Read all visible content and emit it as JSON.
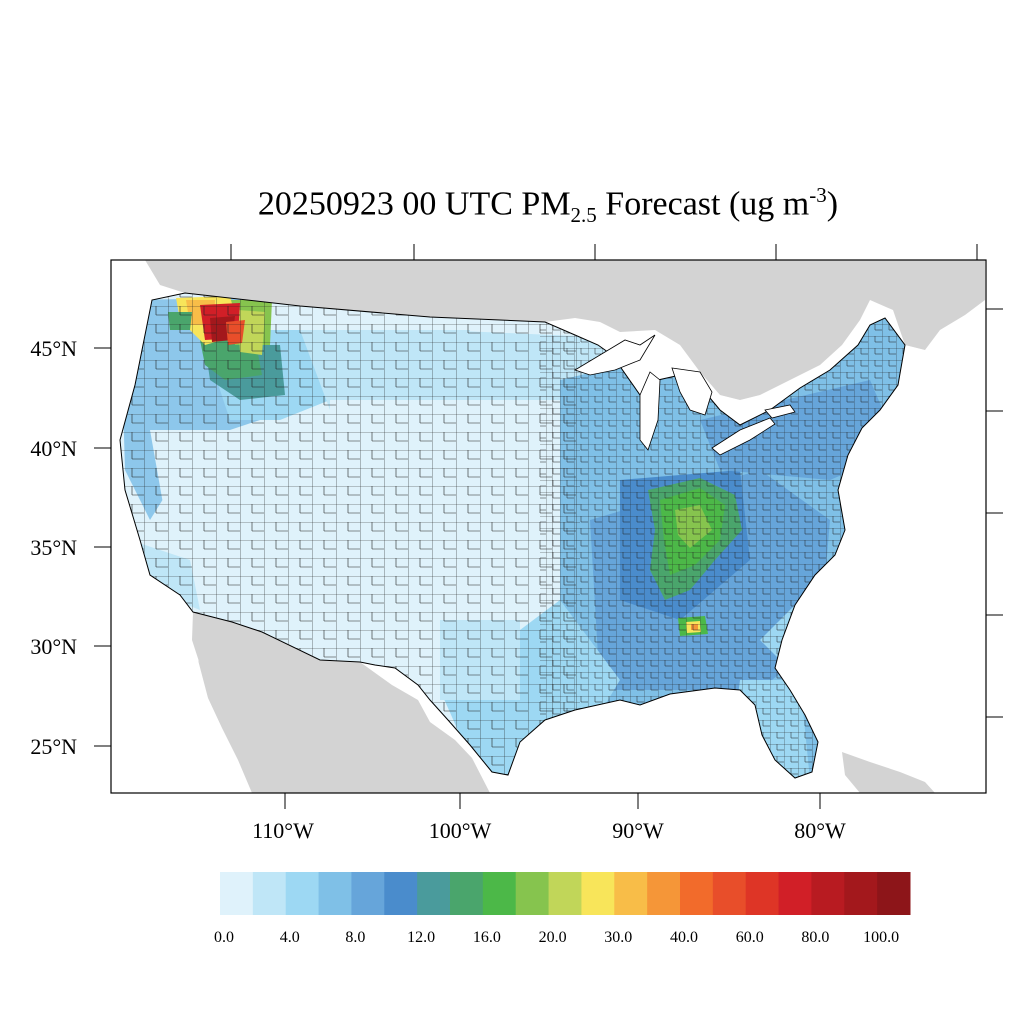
{
  "title": {
    "prefix": "20250923 00 UTC PM",
    "subscript": "2.5",
    "middle": " Forecast (ug m",
    "superscript": "-3",
    "suffix": ")"
  },
  "map": {
    "projection": "Lambert conformal (CONUS)",
    "lat_labels": [
      "45°N",
      "40°N",
      "35°N",
      "30°N",
      "25°N"
    ],
    "lon_labels": [
      "110°W",
      "100°W",
      "90°W",
      "80°W"
    ],
    "land_color": "#d3d3d3",
    "water_color": "#ffffff",
    "border_color": "#000000"
  },
  "colorbar": {
    "labels": [
      "0.0",
      "4.0",
      "8.0",
      "12.0",
      "16.0",
      "20.0",
      "30.0",
      "40.0",
      "60.0",
      "80.0",
      "100.0"
    ],
    "colors": [
      "#dff2fb",
      "#bfe6f7",
      "#9dd8f3",
      "#7fc0e7",
      "#66a5da",
      "#4a8ccc",
      "#4a9b9c",
      "#4aa56c",
      "#4cb848",
      "#86c44e",
      "#c1d659",
      "#f8e55a",
      "#f8bd48",
      "#f59638",
      "#f26b2b",
      "#e84e2a",
      "#de3526",
      "#d11f27",
      "#b81b21",
      "#a3181c",
      "#8d1519"
    ]
  }
}
